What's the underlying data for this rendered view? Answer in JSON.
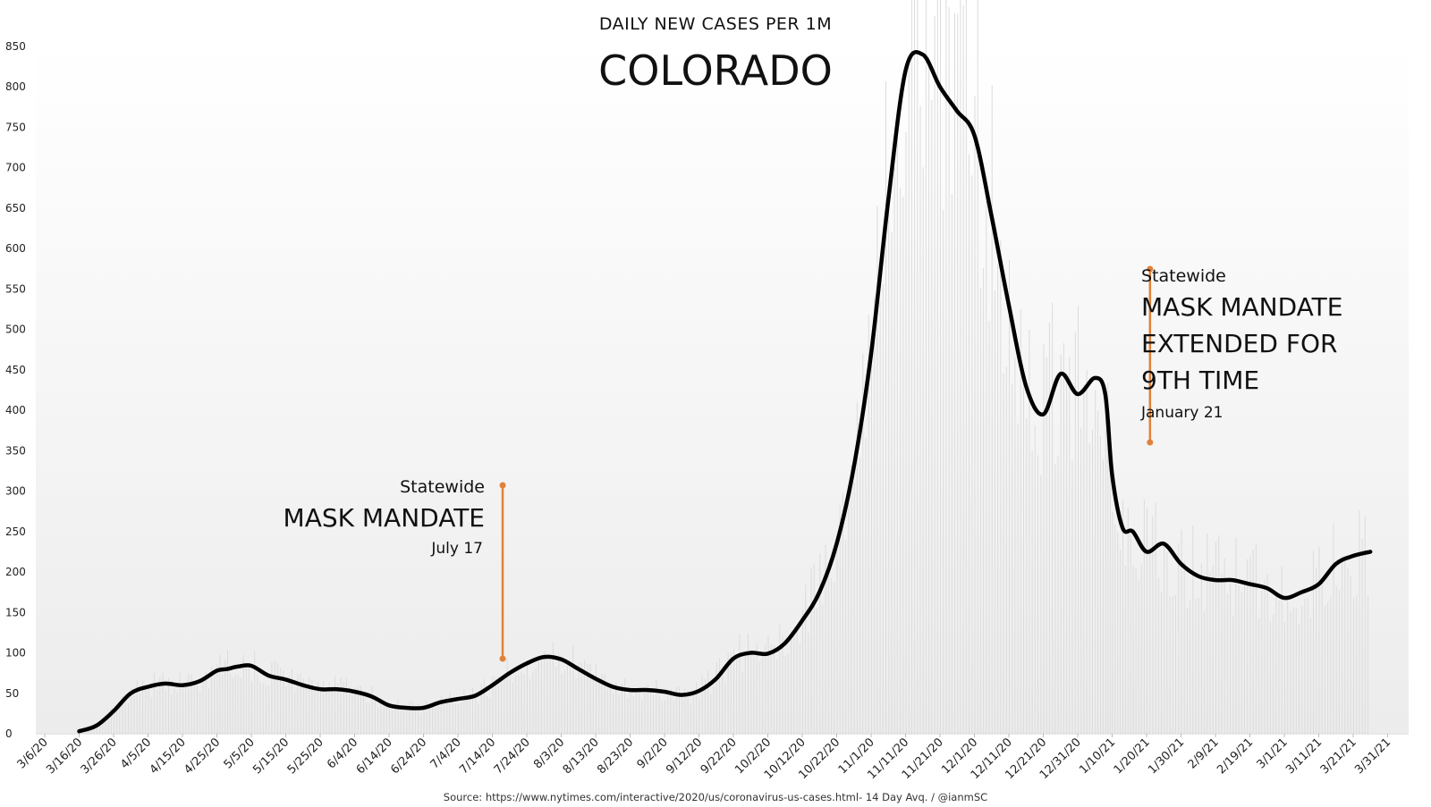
{
  "chart_data": {
    "type": "line",
    "title": "COLORADO",
    "subtitle": "DAILY NEW CASES PER 1M",
    "xlabel": "",
    "ylabel": "",
    "source": "Source: https://www.nytimes.com/interactive/2020/us/coronavirus-us-cases.html- 14 Day Avq. / @ianmSC",
    "ylim": [
      0,
      850
    ],
    "y_ticks": [
      0,
      50,
      100,
      150,
      200,
      250,
      300,
      350,
      400,
      450,
      500,
      550,
      600,
      650,
      700,
      750,
      800,
      850
    ],
    "x_tick_labels": [
      "3/6/20",
      "3/16/20",
      "3/26/20",
      "4/5/20",
      "4/15/20",
      "4/25/20",
      "5/5/20",
      "5/15/20",
      "5/25/20",
      "6/4/20",
      "6/14/20",
      "6/24/20",
      "7/4/20",
      "7/14/20",
      "7/24/20",
      "8/3/20",
      "8/13/20",
      "8/23/20",
      "9/2/20",
      "9/12/20",
      "9/22/20",
      "10/2/20",
      "10/12/20",
      "10/22/20",
      "11/1/20",
      "11/11/20",
      "11/21/20",
      "12/1/20",
      "12/11/20",
      "12/21/20",
      "12/31/20",
      "1/10/21",
      "1/20/21",
      "1/30/21",
      "2/9/21",
      "2/19/21",
      "3/1/21",
      "3/11/21",
      "3/21/21",
      "3/31/21"
    ],
    "grid": false,
    "legend": "none",
    "series": [
      {
        "name": "",
        "color": "#000000",
        "x": [
          "3/6/20",
          "3/16/20",
          "3/21/20",
          "3/26/20",
          "3/31/20",
          "4/5/20",
          "4/10/20",
          "4/15/20",
          "4/20/20",
          "4/25/20",
          "4/28/20",
          "5/1/20",
          "5/5/20",
          "5/10/20",
          "5/15/20",
          "5/20/20",
          "5/25/20",
          "5/30/20",
          "6/4/20",
          "6/9/20",
          "6/14/20",
          "6/19/20",
          "6/24/20",
          "6/29/20",
          "7/4/20",
          "7/9/20",
          "7/14/20",
          "7/19/20",
          "7/24/20",
          "7/29/20",
          "8/3/20",
          "8/8/20",
          "8/13/20",
          "8/18/20",
          "8/23/20",
          "8/28/20",
          "9/2/20",
          "9/7/20",
          "9/12/20",
          "9/17/20",
          "9/22/20",
          "9/27/20",
          "10/2/20",
          "10/7/20",
          "10/12/20",
          "10/17/20",
          "10/22/20",
          "10/27/20",
          "11/1/20",
          "11/6/20",
          "11/11/20",
          "11/16/20",
          "11/21/20",
          "11/26/20",
          "12/1/20",
          "12/6/20",
          "12/11/20",
          "12/16/20",
          "12/21/20",
          "12/26/20",
          "12/31/20",
          "1/5/21",
          "1/8/21",
          "1/10/21",
          "1/13/21",
          "1/16/21",
          "1/20/21",
          "1/25/21",
          "1/30/21",
          "2/4/21",
          "2/9/21",
          "2/14/21",
          "2/19/21",
          "2/24/21",
          "3/1/21",
          "3/6/21",
          "3/11/21",
          "3/16/21",
          "3/21/21",
          "3/26/21",
          "3/31/21",
          "4/3/21"
        ],
        "values": [
          null,
          3,
          10,
          28,
          50,
          58,
          62,
          60,
          65,
          78,
          80,
          83,
          84,
          72,
          67,
          60,
          55,
          55,
          52,
          46,
          35,
          32,
          32,
          39,
          43,
          47,
          60,
          75,
          87,
          95,
          92,
          80,
          68,
          58,
          54,
          54,
          52,
          48,
          53,
          68,
          93,
          100,
          99,
          112,
          140,
          175,
          235,
          330,
          470,
          660,
          820,
          840,
          800,
          770,
          740,
          640,
          530,
          430,
          395,
          445,
          420,
          440,
          420,
          320,
          255,
          250,
          225,
          235,
          210,
          195,
          190,
          190,
          185,
          180,
          168,
          175,
          185,
          210,
          220,
          225,
          null,
          null
        ]
      }
    ],
    "annotations": [
      {
        "x": "7/17/20",
        "label_small": "Statewide",
        "label_big": [
          "MASK MANDATE"
        ],
        "label_date": "July 17",
        "color": "#e0823a"
      },
      {
        "x": "1/21/21",
        "label_small": "Statewide",
        "label_big": [
          "MASK MANDATE",
          "EXTENDED FOR",
          "9TH TIME"
        ],
        "label_date": "January 21",
        "color": "#e0823a"
      }
    ]
  }
}
